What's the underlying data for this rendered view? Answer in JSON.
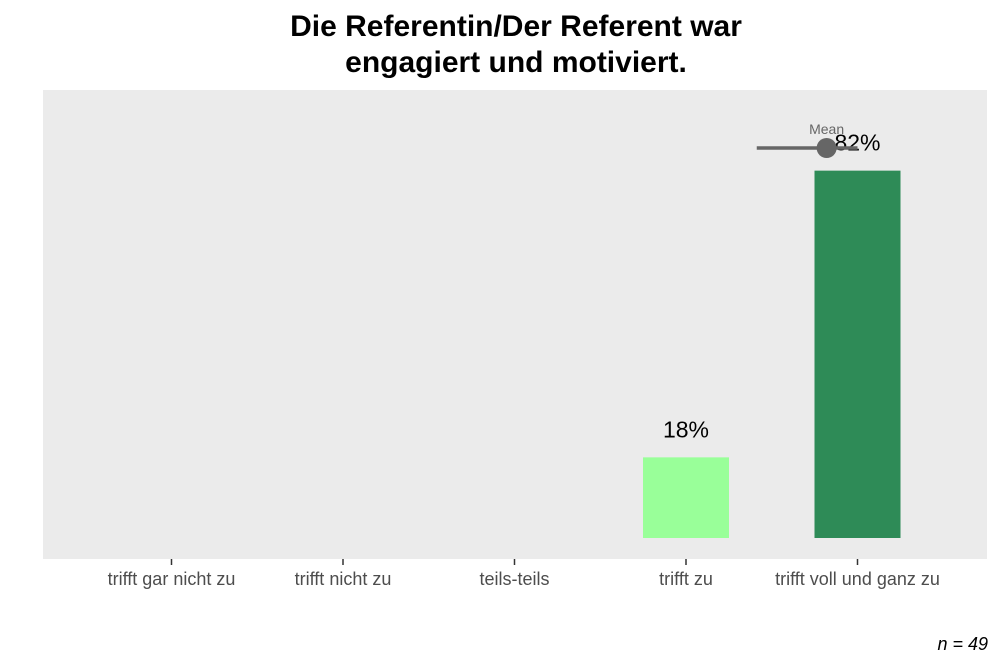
{
  "chart_data": {
    "type": "bar",
    "title_lines": [
      "Die Referentin/Der Referent war",
      "engagiert und motiviert."
    ],
    "categories": [
      "trifft gar nicht zu",
      "trifft nicht zu",
      "teils-teils",
      "trifft zu",
      "trifft voll und ganz zu"
    ],
    "values": [
      0,
      0,
      0,
      18,
      82
    ],
    "value_labels": [
      "",
      "",
      "",
      "18%",
      "82%"
    ],
    "bar_colors": [
      "#d7191c",
      "#fdae61",
      "#ffffbf",
      "#99ff99",
      "#2e8b57"
    ],
    "ylim": [
      0,
      100
    ],
    "xlabel": "",
    "ylabel": "",
    "grid": false,
    "panel_background": "#ebebeb",
    "mean": {
      "label": "Mean",
      "value": 4.82,
      "range": [
        4.5,
        5.0
      ],
      "color": "#666666"
    },
    "n_label": "n = 49"
  }
}
